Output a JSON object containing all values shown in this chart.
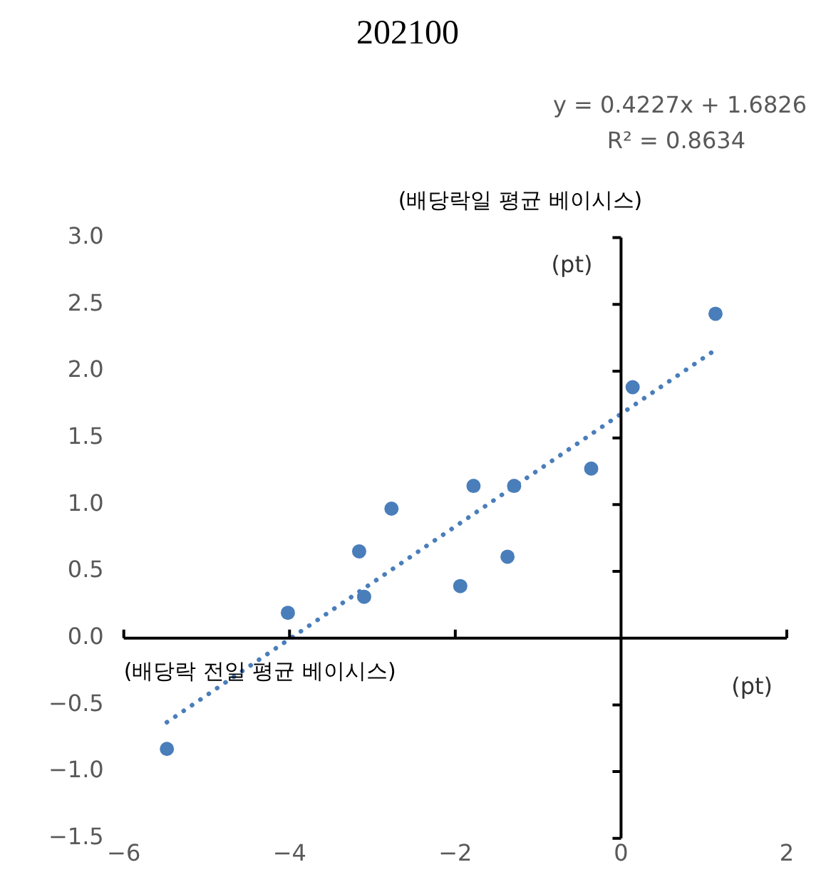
{
  "chart_data": {
    "type": "scatter",
    "title": "202100",
    "xlabel": "(배당락 전일 평균 베이시스)",
    "ylabel": "(배당락일 평균 베이시스)",
    "annotations": [
      "y = 0.4227x + 1.6826",
      "R² = 0.8634",
      "(pt)",
      "(pt)"
    ],
    "x": [
      -5.48,
      -4.02,
      -3.16,
      -3.1,
      -2.77,
      -1.94,
      -1.78,
      -1.37,
      -1.29,
      -0.36,
      0.14,
      1.14
    ],
    "series": [
      {
        "color": "#4a7ebb",
        "marker": "circle",
        "values": [
          -0.83,
          0.19,
          0.65,
          0.31,
          0.97,
          0.39,
          1.14,
          0.61,
          1.14,
          1.27,
          1.88,
          2.43
        ]
      },
      {
        "type": "line",
        "color": "#4a7ebb",
        "line_style": "dotted",
        "x": [
          -5.48,
          1.14
        ],
        "values": [
          -0.63,
          2.16
        ]
      }
    ],
    "xlim": [
      -6,
      2
    ],
    "xticks": [
      {
        "value": -6,
        "label": "−6"
      },
      {
        "value": -4,
        "label": "−4"
      },
      {
        "value": -2,
        "label": "−2"
      },
      0,
      2
    ],
    "ylim": [
      -1.5,
      3
    ],
    "yticks": [
      {
        "value": -1.5,
        "label": "−1.5"
      },
      {
        "value": -1,
        "label": "−1.0"
      },
      {
        "value": -0.5,
        "label": "−0.5"
      },
      {
        "value": 0,
        "label": "0.0"
      },
      0.5,
      {
        "value": 1,
        "label": "1.0"
      },
      1.5,
      {
        "value": 2,
        "label": "2.0"
      },
      2.5,
      {
        "value": 3,
        "label": "3.0"
      }
    ],
    "legend": false
  }
}
